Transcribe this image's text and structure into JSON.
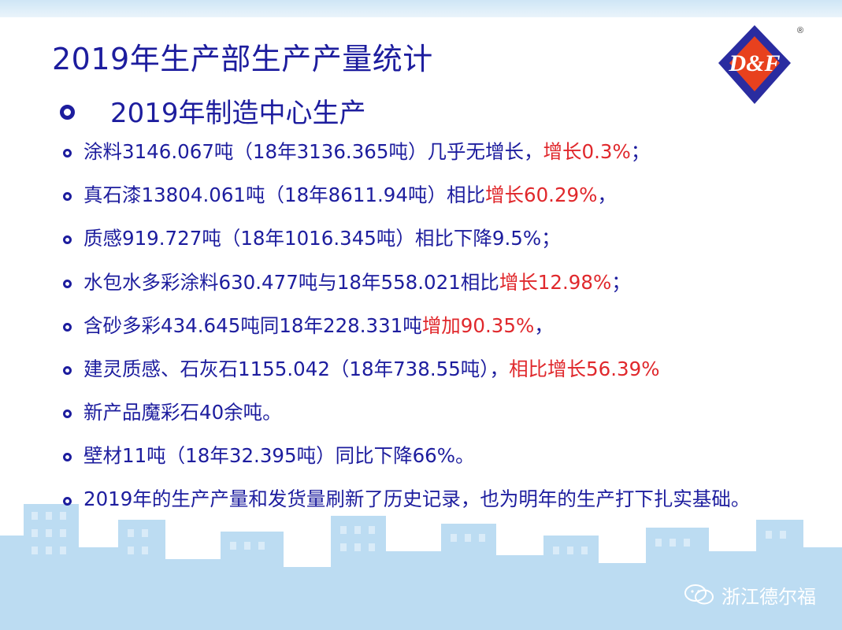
{
  "slide": {
    "title": "2019年生产部生产产量统计",
    "subtitle": "2019年制造中心生产",
    "logo": {
      "text": "D&F",
      "registered": "®",
      "colors": {
        "diamond": "#2a2ca0",
        "inner": "#e8411e"
      }
    },
    "items": [
      {
        "text": "涂料3146.067吨（18年3136.365吨）几乎无增长，",
        "highlight": "增长0.3%",
        "tail": "；"
      },
      {
        "text": "真石漆13804.061吨（18年8611.94吨）相比",
        "highlight": "增长60.29%",
        "tail": "，"
      },
      {
        "text": "质感919.727吨（18年1016.345吨）相比下降9.5%；",
        "highlight": "",
        "tail": ""
      },
      {
        "text": "水包水多彩涂料630.477吨与18年558.021相比",
        "highlight": "增长12.98%",
        "tail": "；"
      },
      {
        "text": "含砂多彩434.645吨同18年228.331吨",
        "highlight": "增加90.35%",
        "tail": "，"
      },
      {
        "text": "建灵质感、石灰石1155.042（18年738.55吨），",
        "highlight": "相比增长56.39%",
        "tail": ""
      },
      {
        "text": "新产品魔彩石40余吨。",
        "highlight": "",
        "tail": ""
      },
      {
        "text": "壁材11吨（18年32.395吨）同比下降66%。",
        "highlight": "",
        "tail": ""
      },
      {
        "text": "2019年的生产产量和发货量刷新了历史记录，也为明年的生产打下扎实基础。",
        "highlight": "",
        "tail": ""
      }
    ],
    "watermark": "浙江德尔福"
  }
}
